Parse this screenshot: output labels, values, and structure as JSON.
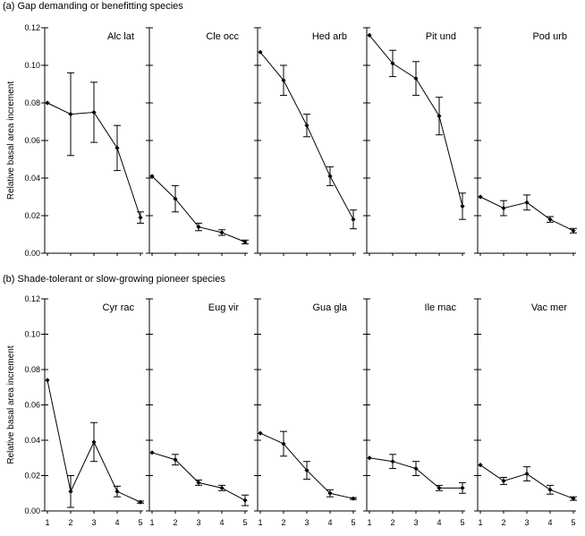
{
  "figure": {
    "ylabel": "Relative basal area increment"
  },
  "chart_data": [
    {
      "type": "line",
      "title": "(a)  Gap demanding or benefitting species",
      "ylabel": "Relative basal area increment",
      "xlabel": "",
      "ylim": [
        0,
        0.12
      ],
      "yticks": [
        "0.00",
        "0.02",
        "0.04",
        "0.06",
        "0.08",
        "0.10",
        "0.12"
      ],
      "x": [
        1,
        2,
        3,
        4,
        5
      ],
      "grid": false,
      "series": [
        {
          "name": "Alc lat",
          "values": [
            0.08,
            0.074,
            0.075,
            0.056,
            0.019
          ],
          "err": [
            0,
            0.022,
            0.016,
            0.012,
            0.003
          ]
        },
        {
          "name": "Cle occ",
          "values": [
            0.041,
            0.029,
            0.014,
            0.011,
            0.006
          ],
          "err": [
            0,
            0.007,
            0.002,
            0.0015,
            0.001
          ]
        },
        {
          "name": "Hed arb",
          "values": [
            0.107,
            0.092,
            0.068,
            0.041,
            0.018
          ],
          "err": [
            0,
            0.008,
            0.006,
            0.005,
            0.005
          ]
        },
        {
          "name": "Pit und",
          "values": [
            0.116,
            0.101,
            0.093,
            0.073,
            0.025
          ],
          "err": [
            0,
            0.007,
            0.009,
            0.01,
            0.007
          ]
        },
        {
          "name": "Pod urb",
          "values": [
            0.03,
            0.024,
            0.027,
            0.018,
            0.012
          ],
          "err": [
            0,
            0.004,
            0.004,
            0.0015,
            0.0012
          ]
        }
      ]
    },
    {
      "type": "line",
      "title": "(b)  Shade-tolerant or slow-growing pioneer species",
      "ylabel": "Relative basal area increment",
      "xlabel": "",
      "ylim": [
        0,
        0.12
      ],
      "yticks": [
        "0.00",
        "0.02",
        "0.04",
        "0.06",
        "0.08",
        "0.10",
        "0.12"
      ],
      "x": [
        1,
        2,
        3,
        4,
        5
      ],
      "xticks": [
        "1",
        "2",
        "3",
        "4",
        "5"
      ],
      "grid": false,
      "series": [
        {
          "name": "Cyr rac",
          "values": [
            0.074,
            0.011,
            0.039,
            0.011,
            0.005
          ],
          "err": [
            0,
            0.009,
            0.011,
            0.003,
            0.0006
          ]
        },
        {
          "name": "Eug vir",
          "values": [
            0.033,
            0.029,
            0.016,
            0.013,
            0.006
          ],
          "err": [
            0,
            0.003,
            0.0015,
            0.0015,
            0.003
          ]
        },
        {
          "name": "Gua gla",
          "values": [
            0.044,
            0.038,
            0.023,
            0.01,
            0.007
          ],
          "err": [
            0,
            0.007,
            0.005,
            0.002,
            0.0005
          ]
        },
        {
          "name": "Ile mac",
          "values": [
            0.03,
            0.028,
            0.024,
            0.013,
            0.013
          ],
          "err": [
            0,
            0.004,
            0.004,
            0.0015,
            0.003
          ]
        },
        {
          "name": "Vac mer",
          "values": [
            0.026,
            0.017,
            0.021,
            0.012,
            0.007
          ],
          "err": [
            0,
            0.002,
            0.004,
            0.0025,
            0.001
          ]
        }
      ]
    }
  ]
}
